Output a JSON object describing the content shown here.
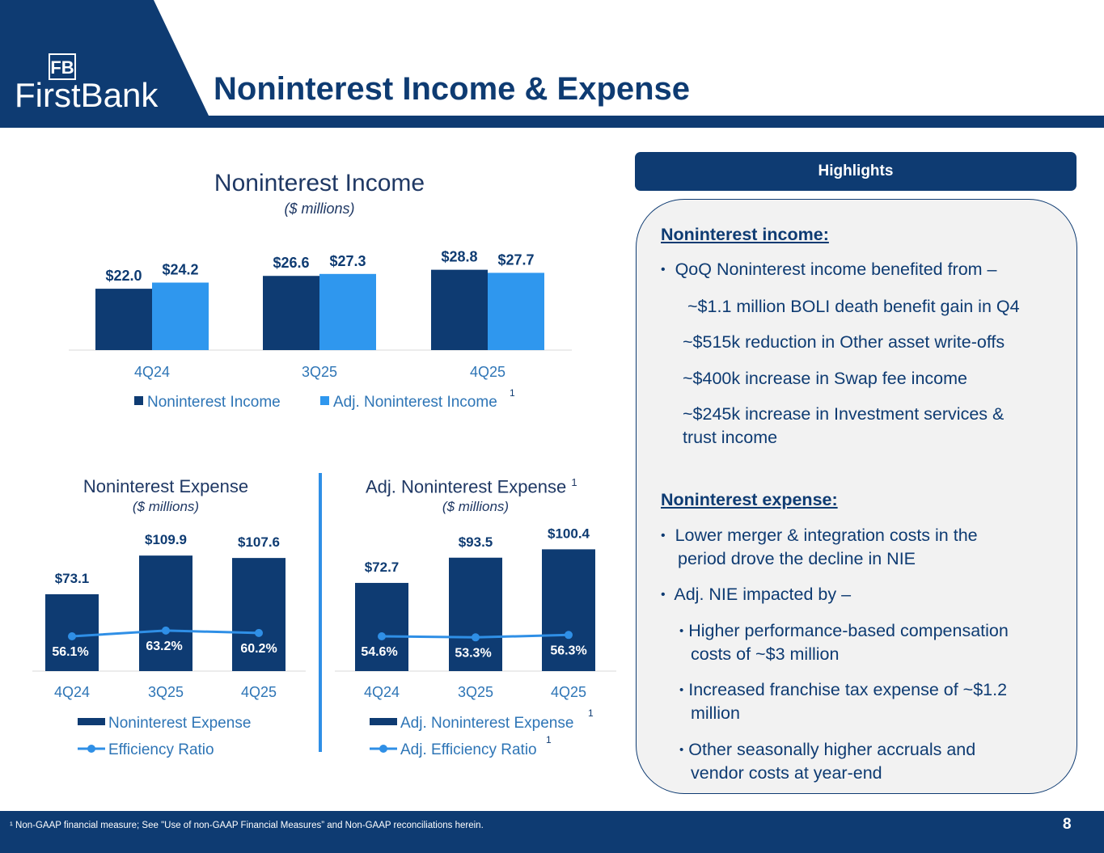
{
  "header": {
    "title": "Noninterest Income & Expense",
    "logo_monogram": "FB",
    "logo_text": "FirstBank"
  },
  "colors": {
    "navy": "#0e3b72",
    "blue": "#2f97ee",
    "line_blue": "#2f8fe6"
  },
  "chart_data": [
    {
      "type": "bar",
      "title": "Noninterest Income",
      "subtitle": "($ millions)",
      "categories": [
        "4Q24",
        "3Q25",
        "4Q25"
      ],
      "series": [
        {
          "name": "Noninterest Income",
          "values": [
            22.0,
            26.6,
            28.8
          ],
          "labels": [
            "$22.0",
            "$26.6",
            "$28.8"
          ]
        },
        {
          "name": "Adj. Noninterest Income",
          "values": [
            24.2,
            27.3,
            27.7
          ],
          "labels": [
            "$24.2",
            "$27.3",
            "$27.7"
          ],
          "footnote": "1"
        }
      ],
      "legend": "bottom"
    },
    {
      "type": "bar",
      "title": "Noninterest Expense",
      "subtitle": "($ millions)",
      "categories": [
        "4Q24",
        "3Q25",
        "4Q25"
      ],
      "series": [
        {
          "name": "Noninterest Expense",
          "values": [
            73.1,
            109.9,
            107.6
          ],
          "labels": [
            "$73.1",
            "$109.9",
            "$107.6"
          ]
        },
        {
          "name": "Efficiency Ratio",
          "kind": "line",
          "values": [
            56.1,
            63.2,
            60.2
          ],
          "labels": [
            "56.1%",
            "63.2%",
            "60.2%"
          ]
        }
      ],
      "legend": "bottom"
    },
    {
      "type": "bar",
      "title": "Adj. Noninterest Expense",
      "title_footnote": "1",
      "subtitle": "($ millions)",
      "categories": [
        "4Q24",
        "3Q25",
        "4Q25"
      ],
      "series": [
        {
          "name": "Adj. Noninterest Expense",
          "values": [
            72.7,
            93.5,
            100.4
          ],
          "labels": [
            "$72.7",
            "$93.5",
            "$100.4"
          ],
          "footnote": "1"
        },
        {
          "name": "Adj. Efficiency Ratio",
          "kind": "line",
          "values": [
            54.6,
            53.3,
            56.3
          ],
          "labels": [
            "54.6%",
            "53.3%",
            "56.3%"
          ],
          "footnote": "1"
        }
      ],
      "legend": "bottom"
    }
  ],
  "highlights": {
    "title": "Highlights",
    "income_heading": "Noninterest income:",
    "income_bullet": "QoQ Noninterest income benefited from –",
    "income_items": [
      "~$1.1 million BOLI death benefit gain in Q4",
      "~$515k reduction in Other asset write-offs",
      "~$400k increase in Swap fee income",
      "~$245k increase in Investment services &",
      "trust income"
    ],
    "expense_heading": "Noninterest expense:",
    "expense_bullet_1_line1": "Lower merger & integration costs in the",
    "expense_bullet_1_line2": "period drove the decline in NIE",
    "expense_bullet_2": "Adj. NIE impacted by –",
    "sub_bullets": [
      [
        "Higher performance-based compensation",
        "costs of ~$3 million"
      ],
      [
        "Increased franchise tax expense of ~$1.2",
        "million"
      ],
      [
        "Other seasonally higher accruals and",
        "vendor costs at year-end"
      ]
    ]
  },
  "footer": {
    "footnote": "¹ Non-GAAP financial measure; See \"Use of non-GAAP Financial Measures” and Non-GAAP reconciliations herein.",
    "page_number": "8"
  }
}
